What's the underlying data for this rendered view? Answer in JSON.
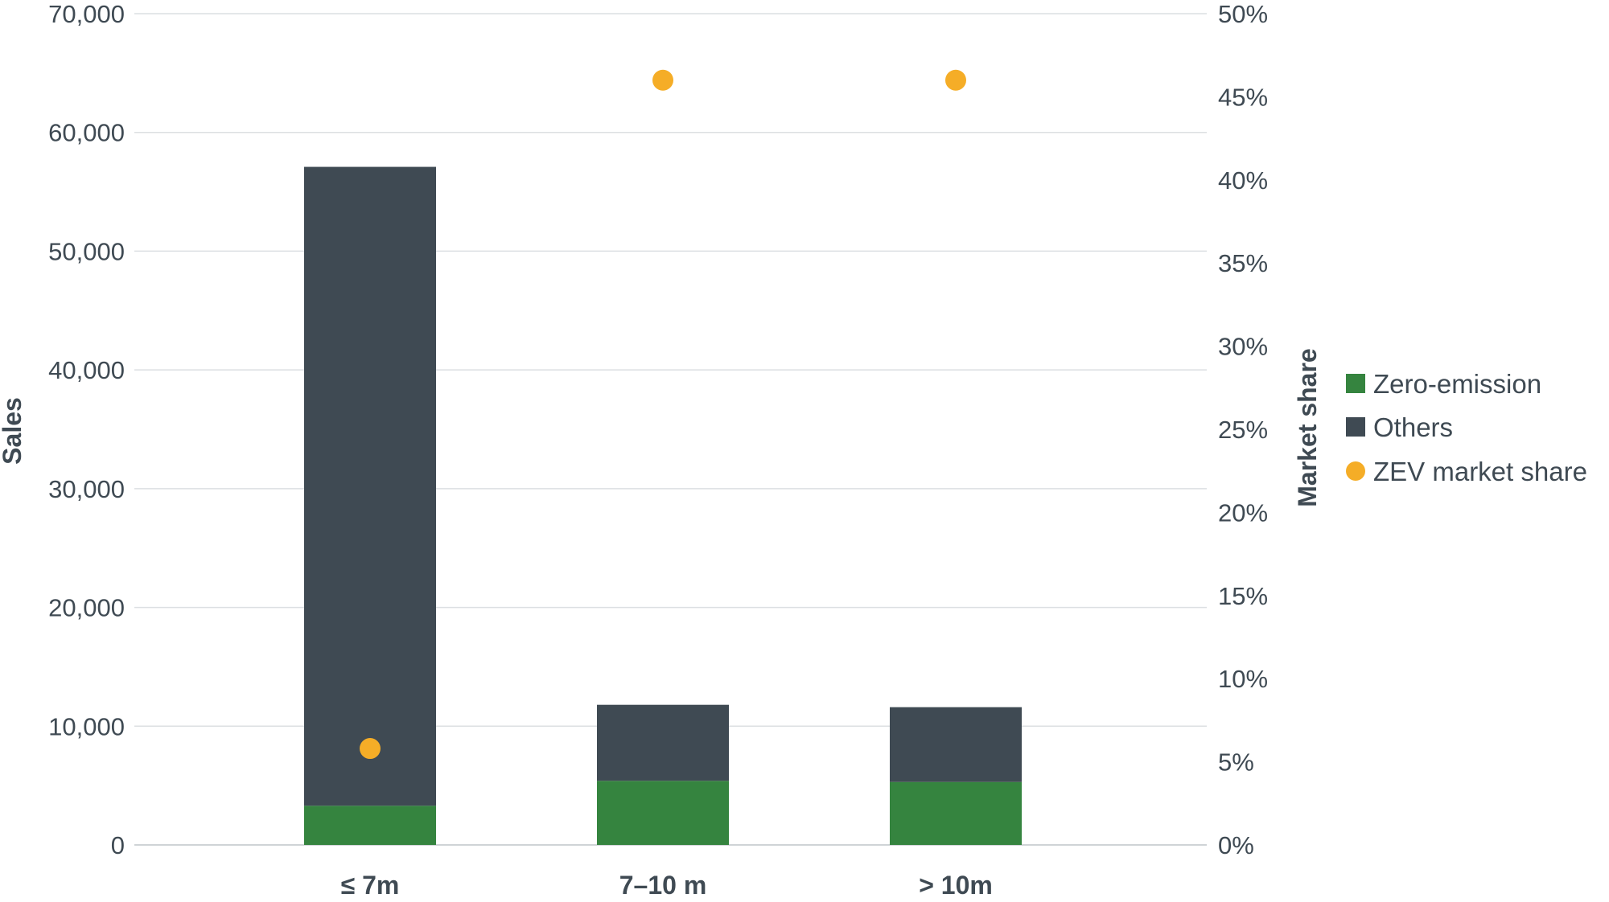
{
  "chart_data": {
    "type": "bar",
    "stacked": true,
    "categories": [
      "≤ 7m",
      "7–10 m",
      "> 10m"
    ],
    "series": [
      {
        "name": "Zero-emission",
        "kind": "bar",
        "axis": "left",
        "color": "#35843f",
        "values": [
          3300,
          5400,
          5300
        ]
      },
      {
        "name": "Others",
        "kind": "bar",
        "axis": "left",
        "color": "#3f4a53",
        "values": [
          53800,
          6400,
          6300
        ]
      },
      {
        "name": "ZEV market share",
        "kind": "scatter",
        "axis": "right",
        "color": "#f5ad27",
        "values": [
          5.8,
          46,
          46
        ]
      }
    ],
    "ylabel": "Sales",
    "ylabel_right": "Market share",
    "xlabel": "",
    "ylim": [
      0,
      70000
    ],
    "ylim_right": [
      0,
      50
    ],
    "y_ticks": [
      "0",
      "10,000",
      "20,000",
      "30,000",
      "40,000",
      "50,000",
      "60,000",
      "70,000"
    ],
    "y_ticks_right": [
      "0%",
      "5%",
      "10%",
      "15%",
      "20%",
      "25%",
      "30%",
      "35%",
      "40%",
      "45%",
      "50%"
    ],
    "grid": true,
    "legend_position": "right"
  }
}
